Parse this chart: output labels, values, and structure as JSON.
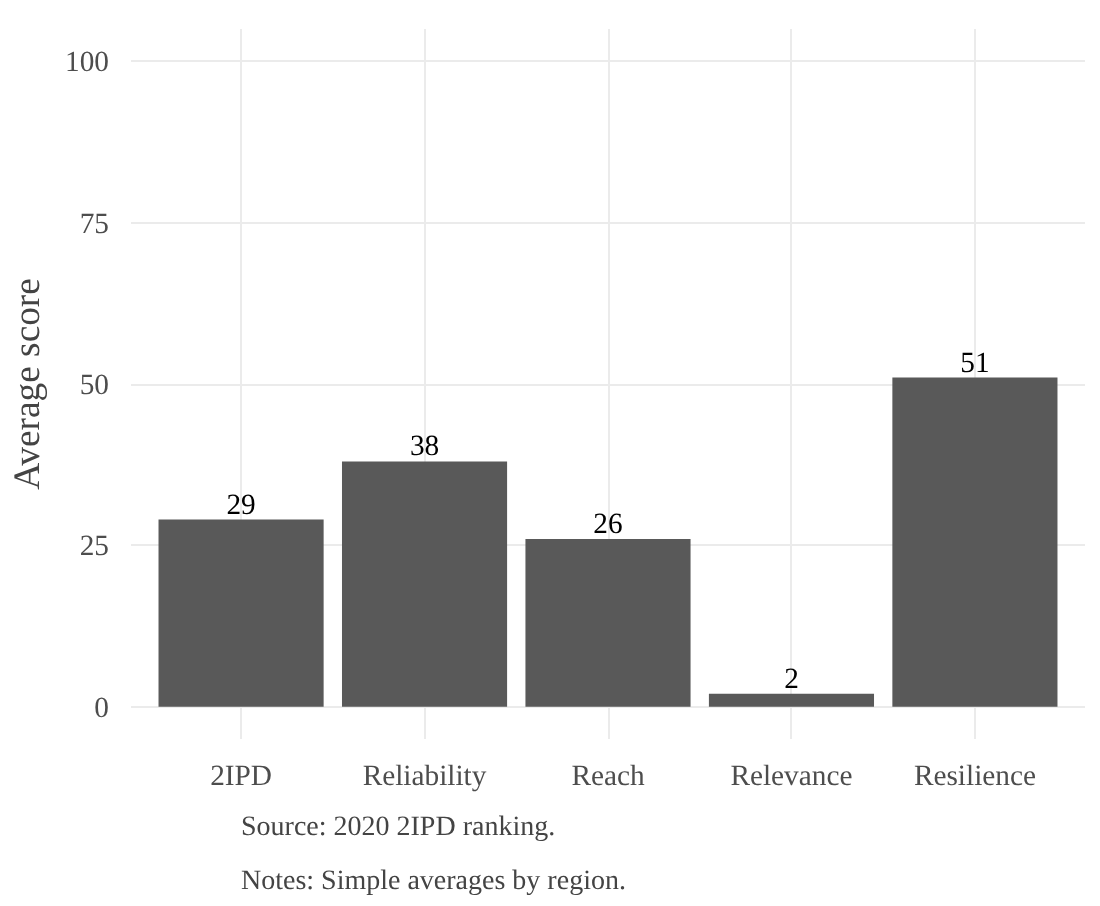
{
  "chart_data": {
    "type": "bar",
    "ylabel": "Average score",
    "categories": [
      "2IPD",
      "Reliability",
      "Reach",
      "Relevance",
      "Resilience"
    ],
    "values": [
      29,
      38,
      26,
      2,
      51
    ],
    "color": "#595959",
    "data_labels": true,
    "ylim": [
      -5,
      105
    ],
    "yticks": [
      0,
      25,
      50,
      75,
      100
    ],
    "grid": true,
    "annotations": [
      "Source: 2020 2IPD ranking.",
      "Notes: Simple averages by region."
    ]
  }
}
